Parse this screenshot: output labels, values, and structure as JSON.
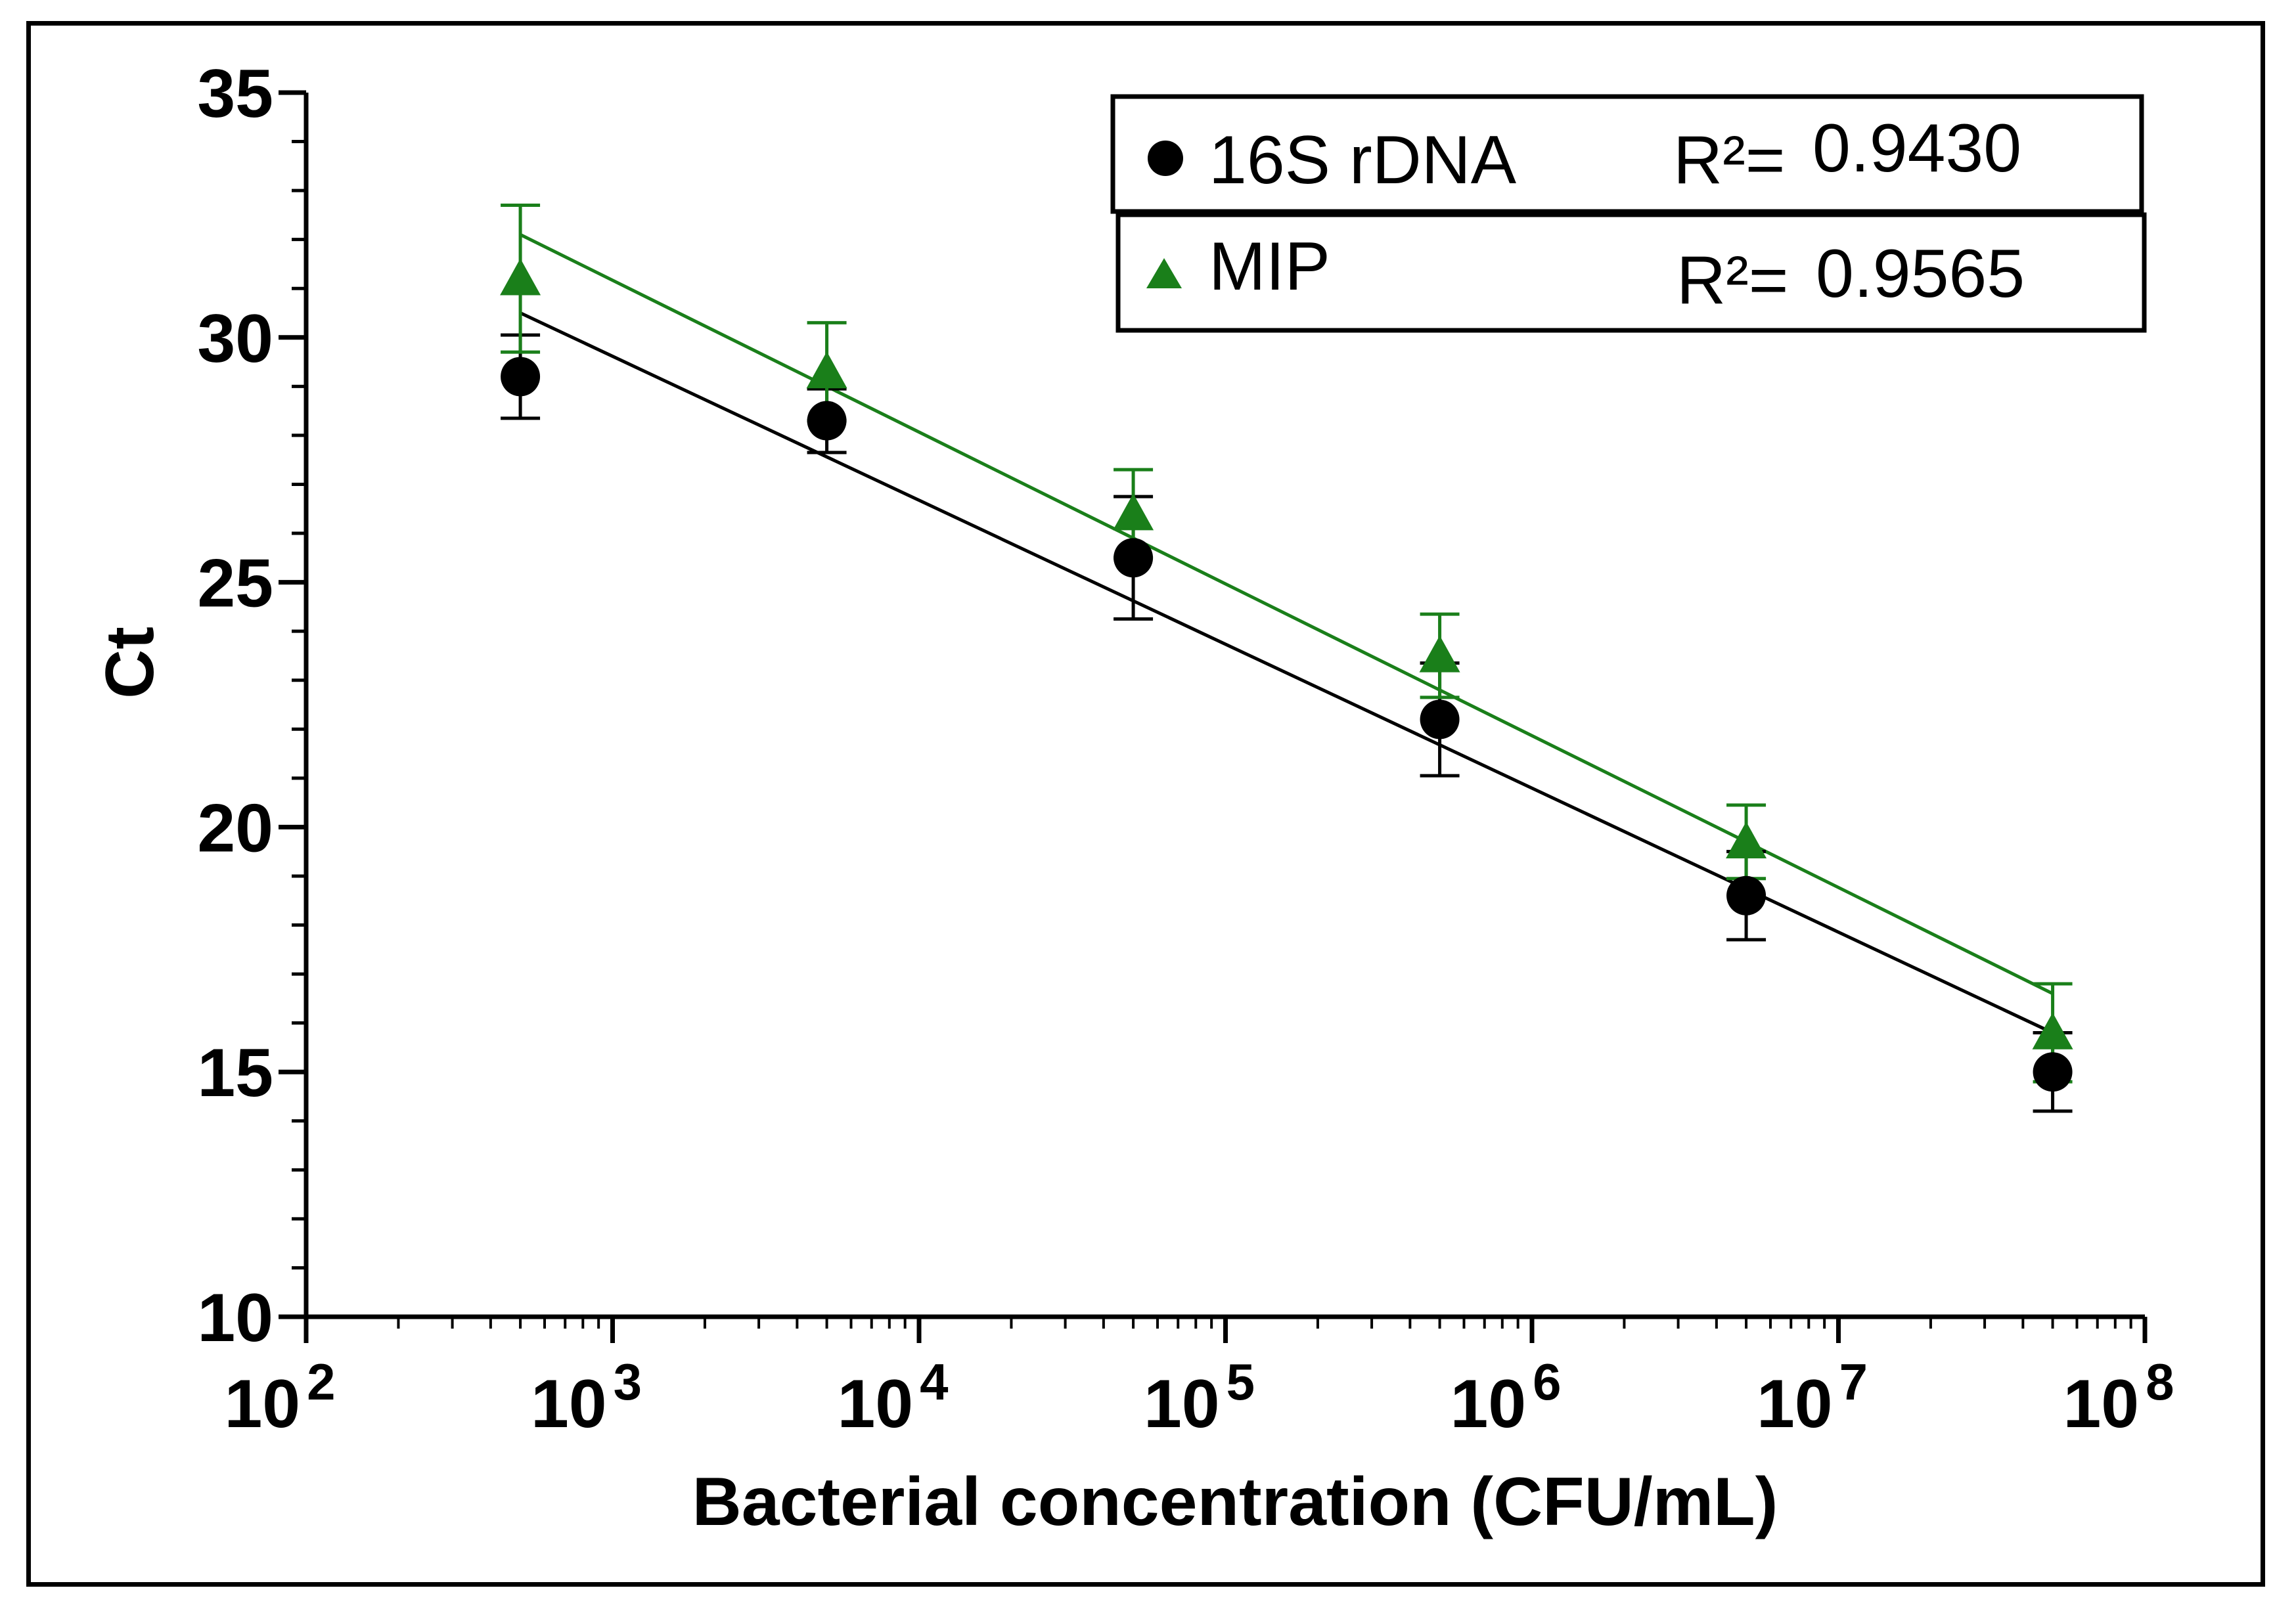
{
  "chart_data": {
    "type": "scatter",
    "title": "",
    "xlabel": "Bacterial concentration (CFU/mL)",
    "ylabel": "Ct",
    "xscale": "log10",
    "xlim_exp": [
      2,
      8
    ],
    "ylim": [
      10,
      35
    ],
    "yticks": [
      10,
      15,
      20,
      25,
      30,
      35
    ],
    "yminor_step": 1,
    "xticks": [
      {
        "base": "10",
        "exp": "2",
        "value_exp": 2
      },
      {
        "base": "10",
        "exp": "3",
        "value_exp": 3
      },
      {
        "base": "10",
        "exp": "4",
        "value_exp": 4
      },
      {
        "base": "10",
        "exp": "5",
        "value_exp": 5
      },
      {
        "base": "10",
        "exp": "6",
        "value_exp": 6
      },
      {
        "base": "10",
        "exp": "7",
        "value_exp": 7
      },
      {
        "base": "10",
        "exp": "8",
        "value_exp": 8
      }
    ],
    "x": [
      500,
      5000,
      50000,
      500000,
      5000000,
      50000000
    ],
    "series": [
      {
        "name": "16S rDNA",
        "r2_label": "R²=",
        "r2": "0.9430",
        "color": "#000000",
        "marker": "circle",
        "values": [
          29.2,
          28.3,
          25.5,
          22.2,
          18.6,
          15.0
        ],
        "errors": [
          0.85,
          0.65,
          1.25,
          1.15,
          0.9,
          0.8
        ],
        "fit": {
          "y_at_first": 30.5,
          "y_at_last": 15.8
        }
      },
      {
        "name": "MIP",
        "r2_label": "R²=",
        "r2": "0.9565",
        "color": "#1a7f1a",
        "marker": "triangle",
        "values": [
          31.2,
          29.3,
          26.4,
          23.5,
          19.7,
          15.8
        ],
        "errors": [
          1.5,
          1.0,
          0.9,
          0.85,
          0.75,
          1.0
        ],
        "fit": {
          "y_at_first": 32.1,
          "y_at_last": 16.6
        }
      }
    ],
    "legend_position": "top-right"
  }
}
